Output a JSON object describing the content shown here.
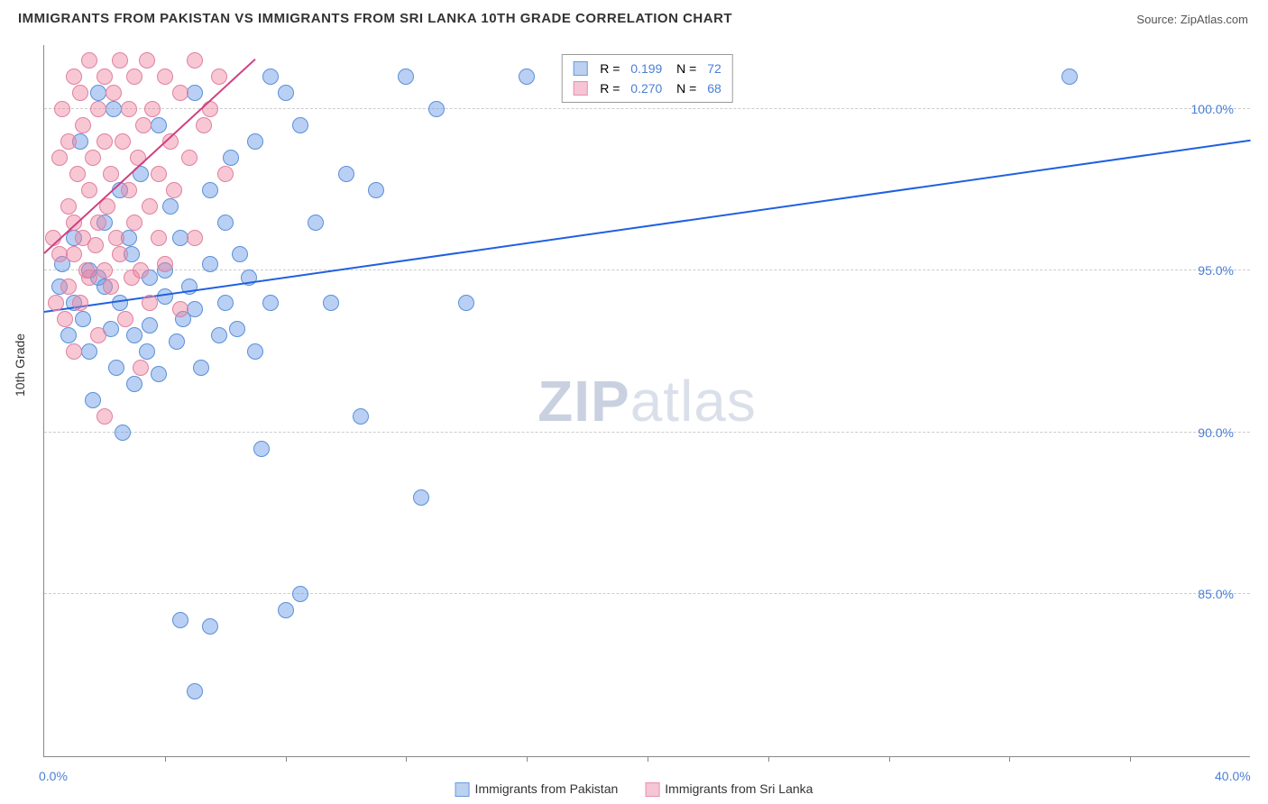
{
  "title": "IMMIGRANTS FROM PAKISTAN VS IMMIGRANTS FROM SRI LANKA 10TH GRADE CORRELATION CHART",
  "source_label": "Source:",
  "source_value": "ZipAtlas.com",
  "y_axis_title": "10th Grade",
  "watermark": {
    "bold": "ZIP",
    "light": "atlas"
  },
  "chart": {
    "type": "scatter",
    "xlim": [
      0,
      40
    ],
    "ylim": [
      80,
      102
    ],
    "x_ticks": [
      0,
      40
    ],
    "x_tick_labels": [
      "0.0%",
      "40.0%"
    ],
    "x_minor_ticks": [
      4,
      8,
      12,
      16,
      20,
      24,
      28,
      32,
      36
    ],
    "y_ticks": [
      85,
      90,
      95,
      100
    ],
    "y_tick_labels": [
      "85.0%",
      "90.0%",
      "95.0%",
      "100.0%"
    ],
    "background_color": "#ffffff",
    "grid_color": "#cccccc",
    "axis_color": "#888888",
    "label_color": "#4a7fd8",
    "marker_radius": 9,
    "marker_opacity": 0.55,
    "series": [
      {
        "name": "Immigrants from Pakistan",
        "color_fill": "rgba(100,150,230,0.45)",
        "color_stroke": "#5a8fd8",
        "legend_swatch_fill": "#bcd0f0",
        "legend_swatch_stroke": "#6a9ae0",
        "r": "0.199",
        "n": "72",
        "trend": {
          "x1": 0,
          "y1": 93.7,
          "x2": 40,
          "y2": 99.0,
          "color": "#2060e0",
          "width": 2
        },
        "points": [
          [
            0.5,
            94.5
          ],
          [
            0.6,
            95.2
          ],
          [
            0.8,
            93.0
          ],
          [
            1.0,
            96.0
          ],
          [
            1.0,
            94.0
          ],
          [
            1.2,
            99.0
          ],
          [
            1.3,
            93.5
          ],
          [
            1.5,
            95.0
          ],
          [
            1.5,
            92.5
          ],
          [
            1.8,
            100.5
          ],
          [
            1.8,
            94.8
          ],
          [
            1.6,
            91.0
          ],
          [
            2.0,
            96.5
          ],
          [
            2.0,
            94.5
          ],
          [
            2.2,
            93.2
          ],
          [
            2.3,
            100.0
          ],
          [
            2.4,
            92.0
          ],
          [
            2.5,
            97.5
          ],
          [
            2.5,
            94.0
          ],
          [
            2.6,
            90.0
          ],
          [
            2.8,
            96.0
          ],
          [
            2.9,
            95.5
          ],
          [
            3.0,
            91.5
          ],
          [
            3.0,
            93.0
          ],
          [
            3.2,
            98.0
          ],
          [
            3.4,
            92.5
          ],
          [
            3.5,
            94.8
          ],
          [
            3.5,
            93.3
          ],
          [
            3.8,
            99.5
          ],
          [
            3.8,
            91.8
          ],
          [
            4.0,
            95.0
          ],
          [
            4.0,
            94.2
          ],
          [
            4.2,
            97.0
          ],
          [
            4.4,
            92.8
          ],
          [
            4.5,
            96.0
          ],
          [
            4.6,
            93.5
          ],
          [
            4.8,
            94.5
          ],
          [
            5.0,
            100.5
          ],
          [
            5.0,
            93.8
          ],
          [
            5.2,
            92.0
          ],
          [
            5.5,
            97.5
          ],
          [
            5.5,
            95.2
          ],
          [
            5.8,
            93.0
          ],
          [
            6.0,
            96.5
          ],
          [
            6.0,
            94.0
          ],
          [
            6.2,
            98.5
          ],
          [
            6.4,
            93.2
          ],
          [
            6.5,
            95.5
          ],
          [
            6.8,
            94.8
          ],
          [
            7.0,
            99.0
          ],
          [
            7.0,
            92.5
          ],
          [
            7.2,
            89.5
          ],
          [
            7.5,
            101.0
          ],
          [
            7.5,
            94.0
          ],
          [
            8.0,
            84.5
          ],
          [
            8.0,
            100.5
          ],
          [
            8.5,
            99.5
          ],
          [
            9.0,
            96.5
          ],
          [
            9.5,
            94.0
          ],
          [
            10.0,
            98.0
          ],
          [
            10.5,
            90.5
          ],
          [
            11.0,
            97.5
          ],
          [
            12.0,
            101.0
          ],
          [
            12.5,
            88.0
          ],
          [
            13.0,
            100.0
          ],
          [
            5.0,
            82.0
          ],
          [
            5.5,
            84.0
          ],
          [
            8.5,
            85.0
          ],
          [
            4.5,
            84.2
          ],
          [
            14.0,
            94.0
          ],
          [
            34.0,
            101.0
          ],
          [
            16.0,
            101.0
          ]
        ]
      },
      {
        "name": "Immigrants from Sri Lanka",
        "color_fill": "rgba(240,130,160,0.45)",
        "color_stroke": "#e080a0",
        "legend_swatch_fill": "#f5c5d5",
        "legend_swatch_stroke": "#e890b0",
        "r": "0.270",
        "n": "68",
        "trend": {
          "x1": 0,
          "y1": 95.5,
          "x2": 7,
          "y2": 101.5,
          "color": "#d04080",
          "width": 2
        },
        "points": [
          [
            0.3,
            96.0
          ],
          [
            0.4,
            94.0
          ],
          [
            0.5,
            98.5
          ],
          [
            0.5,
            95.5
          ],
          [
            0.6,
            100.0
          ],
          [
            0.7,
            93.5
          ],
          [
            0.8,
            97.0
          ],
          [
            0.8,
            99.0
          ],
          [
            0.8,
            94.5
          ],
          [
            1.0,
            101.0
          ],
          [
            1.0,
            95.5
          ],
          [
            1.0,
            96.5
          ],
          [
            1.1,
            98.0
          ],
          [
            1.2,
            94.0
          ],
          [
            1.2,
            100.5
          ],
          [
            1.3,
            96.0
          ],
          [
            1.3,
            99.5
          ],
          [
            1.4,
            95.0
          ],
          [
            1.5,
            97.5
          ],
          [
            1.5,
            101.5
          ],
          [
            1.5,
            94.8
          ],
          [
            1.6,
            98.5
          ],
          [
            1.7,
            95.8
          ],
          [
            1.8,
            100.0
          ],
          [
            1.8,
            93.0
          ],
          [
            1.8,
            96.5
          ],
          [
            2.0,
            99.0
          ],
          [
            2.0,
            101.0
          ],
          [
            2.0,
            95.0
          ],
          [
            2.1,
            97.0
          ],
          [
            2.2,
            94.5
          ],
          [
            2.2,
            98.0
          ],
          [
            2.3,
            100.5
          ],
          [
            2.4,
            96.0
          ],
          [
            2.5,
            101.5
          ],
          [
            2.5,
            95.5
          ],
          [
            2.6,
            99.0
          ],
          [
            2.7,
            93.5
          ],
          [
            2.8,
            97.5
          ],
          [
            2.8,
            100.0
          ],
          [
            2.9,
            94.8
          ],
          [
            3.0,
            101.0
          ],
          [
            3.0,
            96.5
          ],
          [
            3.1,
            98.5
          ],
          [
            3.2,
            95.0
          ],
          [
            3.3,
            99.5
          ],
          [
            3.4,
            101.5
          ],
          [
            3.5,
            97.0
          ],
          [
            3.5,
            94.0
          ],
          [
            3.6,
            100.0
          ],
          [
            3.8,
            96.0
          ],
          [
            3.8,
            98.0
          ],
          [
            4.0,
            101.0
          ],
          [
            4.0,
            95.2
          ],
          [
            4.2,
            99.0
          ],
          [
            4.3,
            97.5
          ],
          [
            4.5,
            100.5
          ],
          [
            4.5,
            93.8
          ],
          [
            4.8,
            98.5
          ],
          [
            5.0,
            101.5
          ],
          [
            5.0,
            96.0
          ],
          [
            5.3,
            99.5
          ],
          [
            5.5,
            100.0
          ],
          [
            5.8,
            101.0
          ],
          [
            6.0,
            98.0
          ],
          [
            3.2,
            92.0
          ],
          [
            2.0,
            90.5
          ],
          [
            1.0,
            92.5
          ]
        ]
      }
    ]
  },
  "bottom_legend": [
    {
      "label": "Immigrants from Pakistan",
      "fill": "#bcd0f0",
      "stroke": "#6a9ae0"
    },
    {
      "label": "Immigrants from Sri Lanka",
      "fill": "#f5c5d5",
      "stroke": "#e890b0"
    }
  ]
}
